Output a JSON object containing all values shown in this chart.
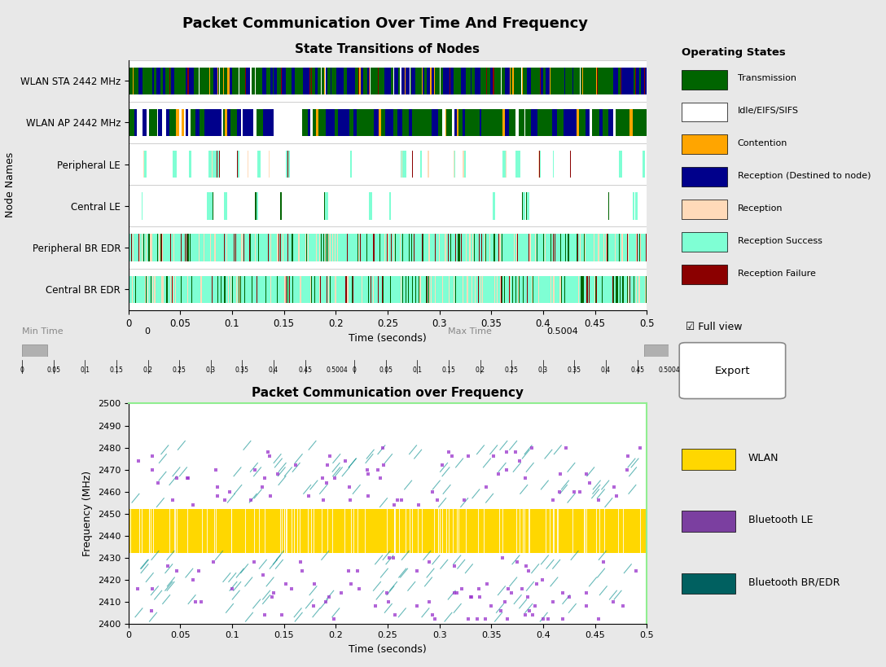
{
  "title_main": "Packet Communication Over Time And Frequency",
  "title_top": "State Transitions of Nodes",
  "title_bottom": "Packet Communication over Frequency",
  "xlabel_top": "Time (seconds)",
  "ylabel_top": "Node Names",
  "xlabel_bottom": "Time (seconds)",
  "ylabel_bottom": "Frequency (MHz)",
  "xlim": [
    0,
    0.5
  ],
  "time_max": 0.5004,
  "node_names": [
    "WLAN STA 2442 MHz",
    "WLAN AP 2442 MHz",
    "Peripheral LE",
    "Central LE",
    "Peripheral BR EDR",
    "Central BR EDR"
  ],
  "freq_yticks": [
    2400,
    2410,
    2420,
    2430,
    2440,
    2450,
    2460,
    2470,
    2480,
    2490,
    2500
  ],
  "bg_color": "#E8E8E8",
  "axes_bg": "#FFFFFF",
  "state_colors": {
    "transmission": "#006400",
    "idle": "#FFFFFF",
    "contention": "#FFA500",
    "reception_destined": "#00008B",
    "reception": "#FFDAB9",
    "reception_success": "#7FFFD4",
    "reception_failure": "#8B0000"
  },
  "legend_states": [
    {
      "label": "Transmission",
      "color": "#006400"
    },
    {
      "label": "Idle/EIFS/SIFS",
      "color": "#FFFFFF"
    },
    {
      "label": "Contention",
      "color": "#FFA500"
    },
    {
      "label": "Reception (Destined to node)",
      "color": "#00008B"
    },
    {
      "label": "Reception",
      "color": "#FFDAB9"
    },
    {
      "label": "Reception Success",
      "color": "#7FFFD4"
    },
    {
      "label": "Reception Failure",
      "color": "#8B0000"
    }
  ],
  "legend_freq": [
    {
      "label": "WLAN",
      "color": "#FFD700"
    },
    {
      "label": "Bluetooth LE",
      "color": "#7B3FA0"
    },
    {
      "label": "Bluetooth BR/EDR",
      "color": "#006060"
    }
  ],
  "wlan_freq_range": [
    2432,
    2452
  ],
  "x_ticks": [
    0,
    0.05,
    0.1,
    0.15,
    0.2,
    0.25,
    0.3,
    0.35,
    0.4,
    0.45,
    0.5
  ]
}
